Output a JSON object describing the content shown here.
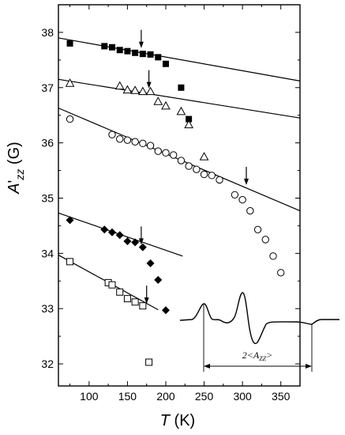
{
  "chart_data": {
    "type": "scatter",
    "xlabel": "T (K)",
    "ylabel": "A'zz (G)",
    "xlabel_parts": {
      "var": "T",
      "unit": " (K)"
    },
    "ylabel_parts": {
      "var": "A",
      "prime": "'",
      "sub": "zz",
      "unit": " (G)"
    },
    "xlim": [
      60,
      375
    ],
    "ylim": [
      31.6,
      38.5
    ],
    "x_ticks": [
      100,
      150,
      200,
      250,
      300,
      350
    ],
    "y_ticks": [
      32,
      33,
      34,
      35,
      36,
      37,
      38
    ],
    "grid": false,
    "series": [
      {
        "marker": "filled-square",
        "x": [
          75,
          120,
          130,
          140,
          150,
          160,
          170,
          180,
          190,
          200,
          220,
          230
        ],
        "y": [
          37.8,
          37.75,
          37.73,
          37.68,
          37.66,
          37.63,
          37.61,
          37.6,
          37.55,
          37.43,
          37.0,
          36.43
        ],
        "fit": {
          "x": [
            60,
            375
          ],
          "y": [
            37.9,
            37.12
          ]
        },
        "arrow": {
          "x": 168,
          "y": 37.76
        }
      },
      {
        "marker": "open-triangle",
        "x": [
          75,
          140,
          150,
          160,
          170,
          180,
          190,
          200,
          220,
          230,
          250
        ],
        "y": [
          37.08,
          37.03,
          36.96,
          36.95,
          36.93,
          36.93,
          36.75,
          36.67,
          36.57,
          36.33,
          35.75
        ],
        "fit": {
          "x": [
            60,
            375
          ],
          "y": [
            37.15,
            36.45
          ]
        },
        "arrow": {
          "x": 178,
          "y": 37.03
        }
      },
      {
        "marker": "open-circle",
        "x": [
          75,
          130,
          140,
          150,
          160,
          170,
          180,
          190,
          200,
          210,
          220,
          230,
          240,
          250,
          260,
          270,
          290,
          300,
          310,
          320,
          330,
          340,
          350
        ],
        "y": [
          36.43,
          36.15,
          36.07,
          36.05,
          36.02,
          35.99,
          35.95,
          35.85,
          35.82,
          35.78,
          35.68,
          35.58,
          35.52,
          35.43,
          35.41,
          35.33,
          35.06,
          34.97,
          34.77,
          34.43,
          34.25,
          33.95,
          33.65
        ],
        "fit": {
          "x": [
            60,
            375
          ],
          "y": [
            36.63,
            34.77
          ]
        },
        "arrow": {
          "x": 305,
          "y": 35.28
        }
      },
      {
        "marker": "filled-diamond",
        "x": [
          75,
          120,
          130,
          140,
          150,
          160,
          170,
          180,
          190,
          200
        ],
        "y": [
          34.6,
          34.43,
          34.38,
          34.33,
          34.22,
          34.2,
          34.11,
          33.82,
          33.52,
          32.97
        ],
        "fit": {
          "x": [
            60,
            222
          ],
          "y": [
            34.73,
            33.95
          ]
        },
        "arrow": {
          "x": 168,
          "y": 34.2
        }
      },
      {
        "marker": "open-square",
        "x": [
          75,
          125,
          130,
          140,
          150,
          160,
          170,
          178
        ],
        "y": [
          33.85,
          33.47,
          33.43,
          33.3,
          33.18,
          33.12,
          33.05,
          32.03
        ],
        "fit": {
          "x": [
            60,
            190
          ],
          "y": [
            33.97,
            32.98
          ]
        },
        "arrow": {
          "x": 175,
          "y": 33.13
        }
      }
    ],
    "inset": {
      "label_parts": {
        "prefix": "2<",
        "var": "A",
        "sub": "ZZ",
        "suffix": ">"
      }
    }
  }
}
